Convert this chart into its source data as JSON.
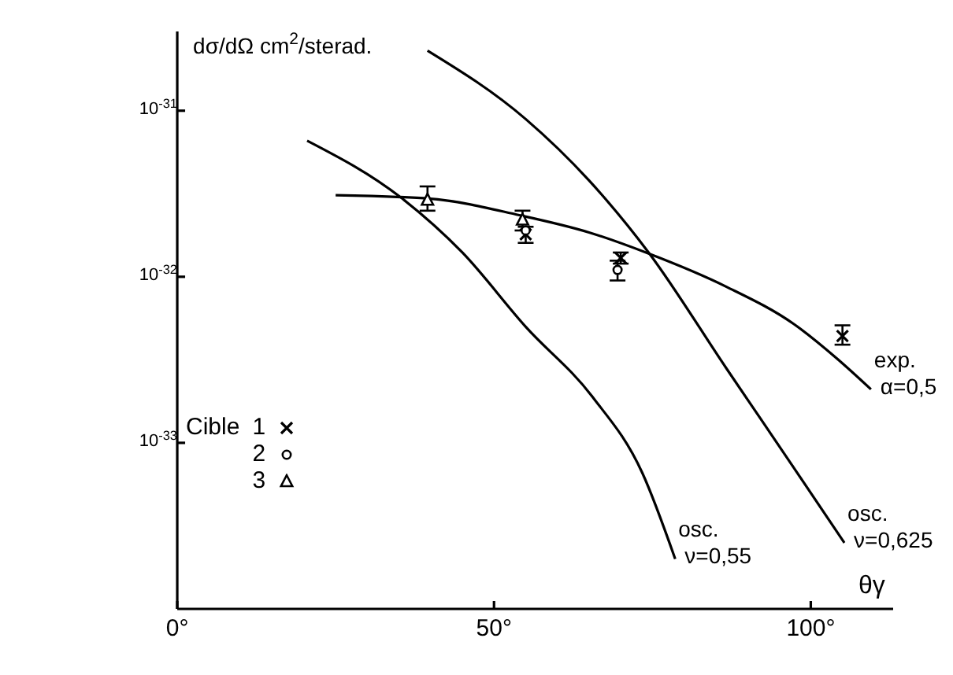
{
  "chart_data": {
    "type": "line",
    "xlabel": "θγ",
    "ylabel": "dσ/dΩ cm$^{2}$/sterad.",
    "legend_title": "Cible",
    "legend": "left",
    "log": "y",
    "grid": false,
    "xlim": [
      0,
      113
    ],
    "xticks": [
      {
        "value": 0,
        "label": "0°"
      },
      {
        "value": 50,
        "label": "50°"
      },
      {
        "value": 100,
        "label": "100°"
      }
    ],
    "ylim": [
      1e-34,
      3e-31
    ],
    "yticks": [
      {
        "value": 1e-33,
        "label": "10$^{-33}$"
      },
      {
        "value": 1e-32,
        "label": "10$^{-32}$"
      },
      {
        "value": 1e-31,
        "label": "10$^{-31}$"
      }
    ],
    "series": [
      {
        "name": "exp. α=0,5",
        "color": "#000000",
        "x": [
          25,
          40,
          54,
          65,
          74.4,
          86.7,
          97.3,
          104.2,
          109.5
        ],
        "values": [
          3.1e-32,
          2.95e-32,
          2.35e-32,
          1.85e-32,
          1.38e-32,
          8.7e-33,
          5.2e-33,
          3.2e-33,
          2.1e-33
        ]
      },
      {
        "name": "osc. ν=0,55",
        "color": "#000000",
        "x": [
          20.5,
          35.3,
          45,
          55,
          65.5,
          73.4,
          78.6
        ],
        "values": [
          6.6e-32,
          3e-32,
          1.4e-32,
          5e-33,
          1.9e-33,
          6.6e-34,
          2e-34
        ]
      },
      {
        "name": "osc. ν=0,625",
        "color": "#000000",
        "x": [
          39.5,
          55,
          65,
          74.4,
          86.7,
          97.3,
          105.3
        ],
        "values": [
          2.3e-31,
          8.9e-32,
          3.8e-32,
          1.4e-32,
          2.8e-33,
          7.1e-34,
          2.5e-34
        ]
      },
      {
        "name": "1",
        "type": "scatter",
        "marker": "cross",
        "color": "#000000",
        "x": [
          55,
          70,
          105
        ],
        "values": [
          1.8e-32,
          1.3e-32,
          4.4e-33
        ],
        "errors": [
          [
            1.6e-32,
            2e-32
          ],
          [
            1.2e-32,
            1.4e-32
          ],
          [
            3.9e-33,
            5.1e-33
          ]
        ]
      },
      {
        "name": "2",
        "type": "scatter",
        "marker": "circle",
        "color": "#000000",
        "x": [
          55,
          69.5
        ],
        "values": [
          1.9e-32,
          1.1e-32
        ],
        "errors": [
          null,
          [
            9.5e-33,
            1.25e-32
          ]
        ]
      },
      {
        "name": "3",
        "type": "scatter",
        "marker": "triangle",
        "color": "#000000",
        "x": [
          39.5,
          54.5
        ],
        "values": [
          2.9e-32,
          2.2e-32
        ],
        "errors": [
          [
            2.5e-32,
            3.5e-32
          ],
          [
            1.9e-32,
            2.5e-32
          ]
        ]
      }
    ]
  }
}
